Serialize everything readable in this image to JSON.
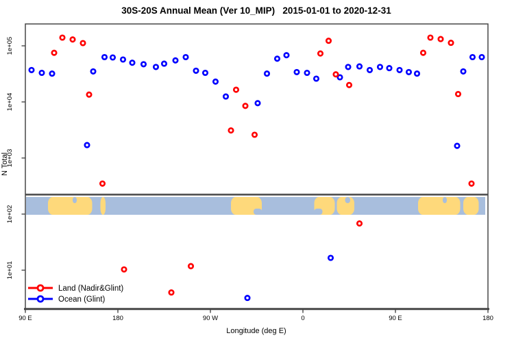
{
  "title": "30S-20S Annual Mean (Ver 10_MIP)   2015-01-01 to 2020-12-31",
  "colors": {
    "land_series": "#ff0000",
    "ocean_series": "#0000ff",
    "map_ocean": "#a8bedd",
    "map_land": "#fed97b",
    "axis": "#474747"
  },
  "chart_data": {
    "type": "scatter",
    "title": "30S-20S Annual Mean (Ver 10_MIP)   2015-01-01 to 2020-12-31",
    "xlabel": "Longitude (deg E)",
    "ylabel": "N Total",
    "x_axis": {
      "note": "longitude axis runs eastward from 90E, wrapping past 180 and 0 back to 180 (450 deg total)",
      "range_deg": [
        90,
        540
      ],
      "ticks": [
        {
          "deg": 90,
          "label": "90 E"
        },
        {
          "deg": 180,
          "label": "180"
        },
        {
          "deg": 270,
          "label": "90 W"
        },
        {
          "deg": 360,
          "label": "0"
        },
        {
          "deg": 450,
          "label": "90 E"
        },
        {
          "deg": 540,
          "label": "180"
        }
      ]
    },
    "y_axis": {
      "scale": "log10",
      "range": [
        2.0,
        250000
      ],
      "ticks": [
        {
          "value": 100000,
          "label": "1e+05"
        },
        {
          "value": 10000,
          "label": "1e+04"
        },
        {
          "value": 1000,
          "label": "1e+03"
        },
        {
          "value": 100,
          "label": "1e+02"
        },
        {
          "value": 10,
          "label": "1e+01"
        }
      ]
    },
    "legend_position": "bottom-left",
    "series": [
      {
        "name": "Land (Nadir&Glint)",
        "color": "#ff0000",
        "marker": "open-circle",
        "points": [
          [
            118,
            75000
          ],
          [
            126,
            140000
          ],
          [
            136,
            130000
          ],
          [
            146,
            112000
          ],
          [
            152,
            13500
          ],
          [
            165,
            350
          ],
          [
            186,
            10.3
          ],
          [
            232,
            4.0
          ],
          [
            251,
            11.8
          ],
          [
            290,
            3100
          ],
          [
            295,
            16500
          ],
          [
            304,
            8500
          ],
          [
            313,
            2600
          ],
          [
            377,
            73000
          ],
          [
            385,
            123000
          ],
          [
            392,
            31000
          ],
          [
            405,
            20000
          ],
          [
            415,
            68
          ],
          [
            477,
            75000
          ],
          [
            484,
            140000
          ],
          [
            494,
            132000
          ],
          [
            504,
            113000
          ],
          [
            511,
            13800
          ],
          [
            524,
            350
          ]
        ]
      },
      {
        "name": "Ocean (Glint)",
        "color": "#0000ff",
        "marker": "open-circle",
        "points": [
          [
            96,
            37000
          ],
          [
            106,
            33000
          ],
          [
            116,
            32000
          ],
          [
            150,
            1700
          ],
          [
            156,
            35000
          ],
          [
            167,
            63000
          ],
          [
            175,
            62000
          ],
          [
            185,
            57000
          ],
          [
            194,
            50000
          ],
          [
            205,
            47000
          ],
          [
            217,
            42000
          ],
          [
            225,
            48000
          ],
          [
            236,
            55000
          ],
          [
            246,
            63000
          ],
          [
            256,
            36000
          ],
          [
            265,
            33000
          ],
          [
            275,
            23000
          ],
          [
            285,
            12500
          ],
          [
            306,
            3.2
          ],
          [
            316,
            9500
          ],
          [
            325,
            32000
          ],
          [
            335,
            59000
          ],
          [
            344,
            68000
          ],
          [
            354,
            34000
          ],
          [
            364,
            33000
          ],
          [
            373,
            26000
          ],
          [
            387,
            16.6
          ],
          [
            396,
            27500
          ],
          [
            404,
            42000
          ],
          [
            415,
            43000
          ],
          [
            425,
            37000
          ],
          [
            435,
            42000
          ],
          [
            444,
            40000
          ],
          [
            454,
            37000
          ],
          [
            463,
            34000
          ],
          [
            471,
            32000
          ],
          [
            510,
            1650
          ],
          [
            516,
            35000
          ],
          [
            525,
            63000
          ],
          [
            534,
            63000
          ]
        ]
      }
    ],
    "map_strip": {
      "note": "coastline band for 30S-20S drawn across the plot just above the 1e+02 gridline",
      "ocean_color": "#a8bedd",
      "land_color": "#fed97b",
      "value_band": [
        100,
        210
      ],
      "land_spans_deg": [
        [
          112,
          155
        ],
        [
          163,
          168
        ],
        [
          290,
          320
        ],
        [
          371,
          391
        ],
        [
          393,
          410
        ],
        [
          472,
          513
        ],
        [
          516,
          531
        ]
      ],
      "ocean_notches": [
        {
          "span": [
            136,
            140
          ],
          "side": "top"
        },
        {
          "span": [
            401,
            406
          ],
          "side": "top"
        },
        {
          "span": [
            371,
            379
          ],
          "side": "bottom"
        },
        {
          "span": [
            312,
            320
          ],
          "side": "bottom"
        },
        {
          "span": [
            496,
            500
          ],
          "side": "top"
        }
      ]
    }
  }
}
